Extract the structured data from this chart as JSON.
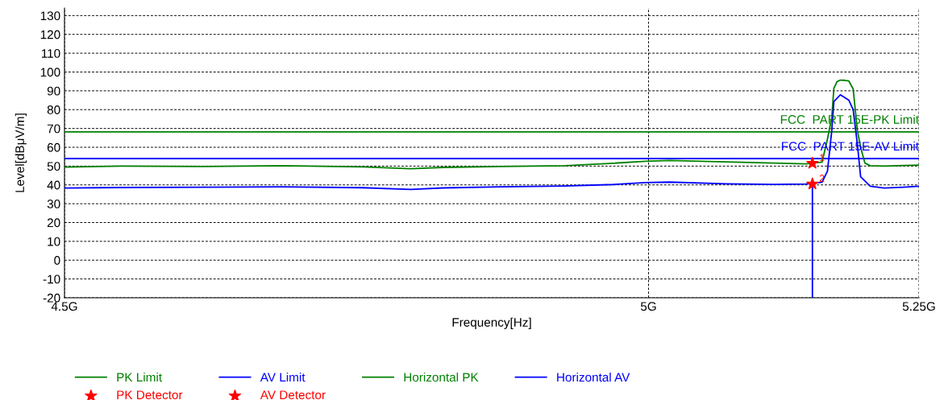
{
  "chart_data": {
    "type": "line",
    "xlabel": "Frequency[Hz]",
    "ylabel": "Level[dBμV/m]",
    "log": "x",
    "grid": true,
    "legend": "bottom",
    "xlim": [
      4.5,
      5.25
    ],
    "xticks": [
      {
        "value": 4.5,
        "label": "4.5G"
      },
      {
        "value": 5,
        "label": "5G"
      },
      {
        "value": 5.25,
        "label": "5.25G"
      }
    ],
    "ylim": [
      -20,
      134
    ],
    "yticks": [
      -20,
      -10,
      0,
      10,
      20,
      30,
      40,
      50,
      60,
      70,
      80,
      90,
      100,
      110,
      120,
      130
    ],
    "series": [
      {
        "name": "PK Limit",
        "type": "line",
        "color": "#008000",
        "x": [
          4.5,
          5.25
        ],
        "values": [
          68.2,
          68.2
        ]
      },
      {
        "name": "AV Limit",
        "type": "line",
        "color": "#0000ff",
        "x": [
          4.5,
          5.25
        ],
        "values": [
          54,
          54
        ]
      },
      {
        "name": "Horizontal PK",
        "type": "line",
        "color": "#008000",
        "x": [
          4.5,
          4.546,
          4.613,
          4.68,
          4.749,
          4.79,
          4.818,
          4.868,
          4.925,
          4.968,
          4.997,
          5.019,
          5.07,
          5.114,
          5.144,
          5.159,
          5.164,
          5.168,
          5.17,
          5.173,
          5.176,
          5.18,
          5.184,
          5.188,
          5.192,
          5.195,
          5.199,
          5.204,
          5.217,
          5.235,
          5.25
        ],
        "values": [
          49.5,
          50,
          49.8,
          50.2,
          49.6,
          48.6,
          49.3,
          49.8,
          50.2,
          51.5,
          52.6,
          53,
          52.2,
          51.6,
          51.2,
          52.1,
          64.4,
          75.6,
          91.4,
          94.9,
          95.7,
          95.6,
          95.2,
          91,
          68.7,
          60,
          51.6,
          50.2,
          50,
          50.3,
          50.5
        ]
      },
      {
        "name": "Horizontal AV",
        "type": "line",
        "color": "#0000ff",
        "x": [
          4.5,
          4.546,
          4.613,
          4.68,
          4.749,
          4.79,
          4.818,
          4.868,
          4.925,
          4.968,
          4.997,
          5.019,
          5.07,
          5.114,
          5.144,
          5.159,
          5.164,
          5.168,
          5.17,
          5.176,
          5.184,
          5.188,
          5.192,
          5.195,
          5.204,
          5.217,
          5.235,
          5.25
        ],
        "values": [
          38.3,
          38.6,
          38.8,
          39,
          38.5,
          37.6,
          38.4,
          39,
          39.4,
          40.2,
          41.2,
          41.5,
          40.6,
          40.3,
          40.5,
          41.4,
          47.3,
          68.7,
          84.3,
          87.9,
          85,
          80,
          61.4,
          44.3,
          39.3,
          38.3,
          38.8,
          39.3
        ]
      },
      {
        "type": "line",
        "color": "#0000ff",
        "x": [
          5.15,
          5.15
        ],
        "values": [
          40.5,
          -20
        ]
      },
      {
        "name": "PK Detector",
        "type": "scatter",
        "marker": "star",
        "color": "#ff0000",
        "x": [
          5.15
        ],
        "values": [
          51.5
        ]
      },
      {
        "name": "AV Detector",
        "type": "scatter",
        "marker": "star",
        "color": "#ff0000",
        "x": [
          5.15
        ],
        "values": [
          40.5
        ]
      }
    ],
    "annotations": [
      {
        "text": "FCC  PART 15E-PK Limit",
        "y": 68.2
      },
      {
        "text": "FCC  PART 15E-AV Limit",
        "y": 54
      },
      {
        "text": "1",
        "x": 5.15,
        "y": 51.5
      },
      {
        "text": "2",
        "x": 5.15,
        "y": 40.5
      }
    ]
  }
}
